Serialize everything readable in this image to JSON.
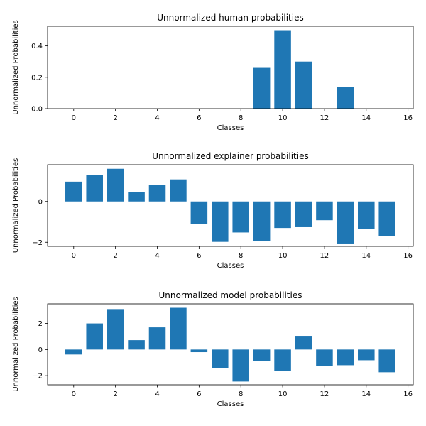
{
  "chart_data": [
    {
      "type": "bar",
      "title": "Unnormalized human probabilities",
      "xlabel": "Classes",
      "ylabel": "Unnormalized Probabilities",
      "x": [
        0,
        1,
        2,
        3,
        4,
        5,
        6,
        7,
        8,
        9,
        10,
        11,
        12,
        13,
        14,
        15
      ],
      "values": [
        0,
        0,
        0,
        0,
        0,
        0,
        0,
        0,
        0,
        0.26,
        0.5,
        0.3,
        0,
        0.14,
        0,
        0
      ],
      "xlim": [
        -1.25,
        16.25
      ],
      "ylim": [
        0,
        0.525
      ],
      "xticks": [
        0,
        2,
        4,
        6,
        8,
        10,
        12,
        14,
        16
      ],
      "yticks": [
        0.0,
        0.2,
        0.4
      ],
      "ytick_labels": [
        "0.0",
        "0.2",
        "0.4"
      ],
      "color": "#1f77b4"
    },
    {
      "type": "bar",
      "title": "Unnormalized explainer probabilities",
      "xlabel": "Classes",
      "ylabel": "Unnormalized Probabilities",
      "x": [
        0,
        1,
        2,
        3,
        4,
        5,
        6,
        7,
        8,
        9,
        10,
        11,
        12,
        13,
        14,
        15
      ],
      "values": [
        0.97,
        1.3,
        1.6,
        0.45,
        0.8,
        1.08,
        -1.12,
        -1.98,
        -1.52,
        -1.93,
        -1.3,
        -1.26,
        -0.92,
        -2.06,
        -1.36,
        -1.7
      ],
      "xlim": [
        -1.25,
        16.25
      ],
      "ylim": [
        -2.2,
        1.8
      ],
      "xticks": [
        0,
        2,
        4,
        6,
        8,
        10,
        12,
        14,
        16
      ],
      "yticks": [
        -2,
        0
      ],
      "ytick_labels": [
        "−2",
        "0"
      ],
      "color": "#1f77b4"
    },
    {
      "type": "bar",
      "title": "Unnormalized model probabilities",
      "xlabel": "Classes",
      "ylabel": "Unnormalized Probabilities",
      "x": [
        0,
        1,
        2,
        3,
        4,
        5,
        6,
        7,
        8,
        9,
        10,
        11,
        12,
        13,
        14,
        15
      ],
      "values": [
        -0.38,
        2.0,
        3.1,
        0.72,
        1.7,
        3.2,
        -0.2,
        -1.4,
        -2.45,
        -0.88,
        -1.65,
        1.05,
        -1.25,
        -1.2,
        -0.82,
        -1.74
      ],
      "xlim": [
        -1.25,
        16.25
      ],
      "ylim": [
        -2.7,
        3.5
      ],
      "xticks": [
        0,
        2,
        4,
        6,
        8,
        10,
        12,
        14,
        16
      ],
      "yticks": [
        -2,
        0,
        2
      ],
      "ytick_labels": [
        "−2",
        "0",
        "2"
      ],
      "color": "#1f77b4"
    }
  ]
}
